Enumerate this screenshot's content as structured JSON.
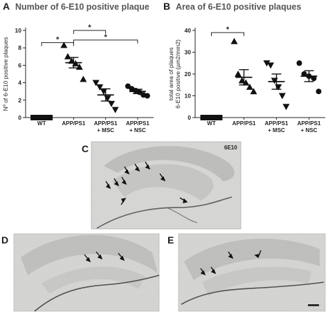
{
  "panels": {
    "A": {
      "letter": "A",
      "title": "Number of 6-E10 positive plaque"
    },
    "B": {
      "letter": "B",
      "title": "Area of 6-E10 positive plaques"
    },
    "C": {
      "letter": "C",
      "marker": "6E10"
    },
    "D": {
      "letter": "D"
    },
    "E": {
      "letter": "E"
    }
  },
  "significance_symbol": "*",
  "chart_data": [
    {
      "id": "A",
      "type": "scatter",
      "title": "Number of 6-E10 positive plaque",
      "ylabel": "Nº of 6-E10 positive plaques",
      "ylim": [
        0,
        10
      ],
      "yticks": [
        0,
        2,
        4,
        6,
        8,
        10
      ],
      "categories": [
        "WT",
        "APP/PS1",
        "APP/PS1 + MSC",
        "APP/PS1 + NSC"
      ],
      "category_lines": [
        [
          "WT"
        ],
        [
          "APP/PS1"
        ],
        [
          "APP/PS1",
          "+ MSC"
        ],
        [
          "APP/PS1",
          "+ NSC"
        ]
      ],
      "markers": [
        "square",
        "triangle-up",
        "triangle-down",
        "circle"
      ],
      "points": [
        [
          0,
          0,
          0,
          0,
          0,
          0
        ],
        [
          8.3,
          7.0,
          6.5,
          6.2,
          5.8,
          4.4
        ],
        [
          4.0,
          3.5,
          3.0,
          2.2,
          1.6,
          0.9
        ],
        [
          3.6,
          3.3,
          3.1,
          2.9,
          2.6,
          2.5
        ]
      ],
      "mean": [
        0,
        6.3,
        2.6,
        3.0
      ],
      "sem": [
        0,
        0.6,
        0.7,
        0.25
      ],
      "significance": [
        {
          "from": 0,
          "to": 1,
          "y": 8.6,
          "label": "*"
        },
        {
          "from": 1,
          "to": 2,
          "y": 10.0,
          "label": "*"
        },
        {
          "from": 1,
          "to": 3,
          "y": 8.9,
          "label": "*"
        }
      ]
    },
    {
      "id": "B",
      "type": "scatter",
      "title": "Area of 6-E10 positive plaques",
      "ylabel": "total area of plaques 6-E10 positive (µm2/mm2)",
      "ylabel_lines": [
        "total area of plaques",
        "6-E10 positive (µm2/mm2)"
      ],
      "ylim": [
        0,
        40
      ],
      "yticks": [
        0,
        10,
        20,
        30,
        40
      ],
      "categories": [
        "WT",
        "APP/PS1",
        "APP/PS1 + MSC",
        "APP/PS1 + NSC"
      ],
      "category_lines": [
        [
          "WT"
        ],
        [
          "APP/PS1"
        ],
        [
          "APP/PS1",
          "+ MSC"
        ],
        [
          "APP/PS1",
          "+ NSC"
        ]
      ],
      "markers": [
        "square",
        "triangle-up",
        "triangle-down",
        "circle"
      ],
      "points": [
        [
          0,
          0,
          0,
          0,
          0,
          0
        ],
        [
          35,
          20,
          17,
          16,
          14,
          12
        ],
        [
          25,
          24,
          17,
          14,
          10,
          5
        ],
        [
          25,
          20,
          19,
          18,
          12
        ]
      ],
      "mean": [
        0,
        18.5,
        16.5,
        19.0
      ],
      "sem": [
        0,
        3.5,
        3.5,
        2.5
      ],
      "significance": [
        {
          "from": 0,
          "to": 1,
          "y": 39,
          "label": "*"
        }
      ]
    }
  ]
}
